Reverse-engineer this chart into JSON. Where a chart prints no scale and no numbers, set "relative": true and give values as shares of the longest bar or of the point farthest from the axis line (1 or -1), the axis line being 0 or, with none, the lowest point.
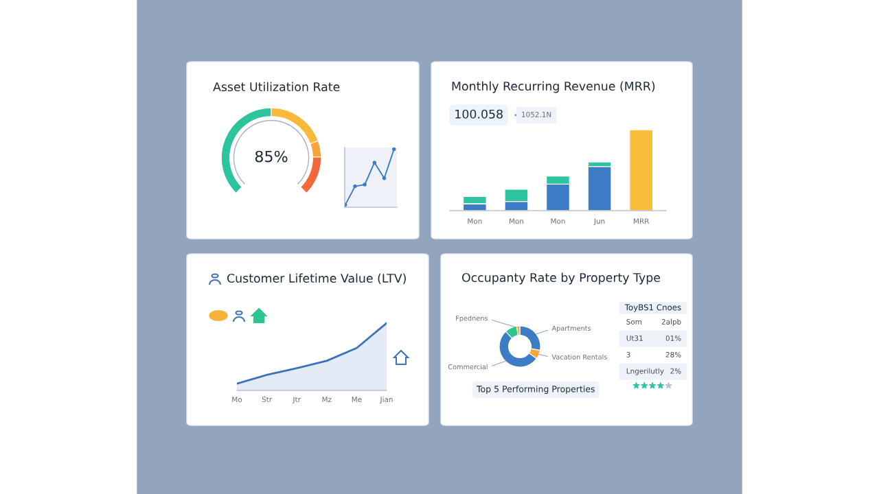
{
  "chart_data": [
    {
      "type": "donut",
      "title": "Asset Utilization Rate",
      "categories": [
        null,
        null,
        null,
        null
      ],
      "values": [
        50,
        26,
        7,
        17
      ],
      "colors": [
        "#2cc49a",
        "#fbb93c",
        "#f9a23b",
        "#f2683a"
      ],
      "annotations": [
        "85%"
      ]
    },
    {
      "type": "line",
      "relative": true,
      "categories": [
        null,
        null,
        null,
        null,
        null,
        null
      ],
      "marker": "circle",
      "series": [
        {
          "color": "#3d7cc4",
          "values": [
            0.04,
            0.36,
            0.39,
            0.77,
            0.5,
            1.0
          ]
        }
      ]
    },
    {
      "type": "bar",
      "title": "Monthly Recurring Revenue (MRR)",
      "relative": true,
      "stacked": true,
      "categories": [
        "Mon",
        "Mon",
        "Mon",
        "Jun",
        "MRR"
      ],
      "annotations": [
        "100.058",
        "1052.1N"
      ],
      "series": [
        {
          "color": "#3d7cc4",
          "values": [
            0.085,
            0.113,
            0.327,
            0.546,
            null
          ]
        },
        {
          "color": "#2ec4a0",
          "values": [
            0.09,
            0.152,
            0.101,
            0.056,
            null
          ]
        },
        {
          "color": "#fbbd3c",
          "values": [
            null,
            null,
            null,
            null,
            1.0
          ]
        }
      ]
    },
    {
      "type": "area",
      "title": "Customer Lifetime Value (LTV)",
      "relative": true,
      "categories": [
        "Mo",
        "Str",
        "Jtr",
        "Mz",
        "Me",
        "Jian"
      ],
      "series": [
        {
          "color": "#3d72b8",
          "values": [
            0.1,
            0.23,
            0.33,
            0.44,
            0.63,
            1.0
          ]
        }
      ]
    },
    {
      "type": "donut",
      "title": "Occupanty Rate by Property Type",
      "categories": [
        "Apartments",
        "Vacation Rentals",
        "Commercial",
        null,
        "Fpednens"
      ],
      "values": [
        28,
        7,
        53,
        9.5,
        2.5
      ],
      "colors": [
        "#3d7cc4",
        "#f6a93b",
        "#3d7cc4",
        "#2ec48e",
        "#f6a93b"
      ],
      "annotations": [
        "Top 5 Performing Properties"
      ]
    },
    {
      "type": "other",
      "title": "ToyBS1 Cnoes",
      "annotations": [
        "Som",
        "2alpb",
        "Ut31",
        "01%",
        "3",
        "28%",
        "Lngerilutly",
        "2%"
      ]
    }
  ]
}
